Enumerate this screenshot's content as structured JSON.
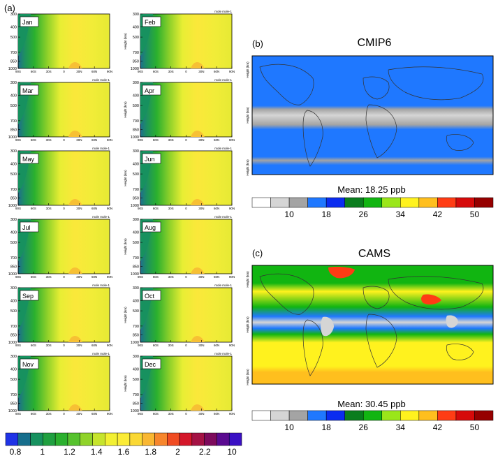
{
  "panel_labels": {
    "a": "(a)",
    "b": "(b)",
    "c": "(c)"
  },
  "monthly_panels": {
    "months": [
      "Jan",
      "Feb",
      "Mar",
      "Apr",
      "May",
      "Jun",
      "Jul",
      "Aug",
      "Sep",
      "Oct",
      "Nov",
      "Dec"
    ],
    "ytick_labels": [
      "300",
      "400",
      "500",
      "700",
      "850",
      "1000"
    ],
    "xtick_labels": [
      "90S",
      "60S",
      "30S",
      "0",
      "30N",
      "60N",
      "90N"
    ],
    "ylabel": "Height (km)",
    "units": "mole mole-1"
  },
  "map_panels": [
    {
      "title": "CMIP6",
      "mean_text": "Mean: 18.25 ppb"
    },
    {
      "title": "CAMS",
      "mean_text": "Mean: 30.45 ppb"
    }
  ],
  "ppb_colorbar": {
    "tick_labels": [
      "10",
      "18",
      "26",
      "34",
      "42",
      "50"
    ],
    "colors": [
      "#ffffff",
      "#d5d5d5",
      "#a4a4a4",
      "#1f78ff",
      "#0a2cf0",
      "#0a7d1e",
      "#11b511",
      "#9ae61a",
      "#fff21e",
      "#ffbf1e",
      "#ff3c14",
      "#d60a0a",
      "#960000"
    ]
  },
  "ratio_colorbar": {
    "tick_labels": [
      "0.8",
      "1",
      "1.2",
      "1.4",
      "1.6",
      "1.8",
      "2",
      "2.2",
      "10"
    ],
    "colors": [
      "#1f33e6",
      "#166e8c",
      "#17915f",
      "#20a040",
      "#2bb02e",
      "#56c22e",
      "#90d32a",
      "#c6e42c",
      "#f2f032",
      "#fbec36",
      "#fad834",
      "#f9b732",
      "#f7862c",
      "#f04c22",
      "#d4172a",
      "#a41244",
      "#7d0a5c",
      "#5a0a90",
      "#3a10c4"
    ]
  },
  "chart_data": [
    {
      "type": "heatmap",
      "panel": "(a)",
      "facets": [
        "Jan",
        "Feb",
        "Mar",
        "Apr",
        "May",
        "Jun",
        "Jul",
        "Aug",
        "Sep",
        "Oct",
        "Nov",
        "Dec"
      ],
      "xlabel": "",
      "ylabel": "Height (km)",
      "x": [
        "90S",
        "60S",
        "30S",
        "0",
        "30N",
        "60N",
        "90N"
      ],
      "y": [
        300,
        400,
        500,
        700,
        850,
        1000
      ],
      "colorbar_ticks": [
        0.8,
        1,
        1.2,
        1.4,
        1.6,
        1.8,
        2,
        2.2,
        10
      ],
      "units": "mole mole-1",
      "grid": false
    },
    {
      "type": "heatmap",
      "panel": "(b)",
      "title": "CMIP6",
      "annotation": "Mean: 18.25 ppb",
      "colorbar_ticks": [
        10,
        18,
        26,
        34,
        42,
        50
      ],
      "grid": false
    },
    {
      "type": "heatmap",
      "panel": "(c)",
      "title": "CAMS",
      "annotation": "Mean: 30.45 ppb",
      "colorbar_ticks": [
        10,
        18,
        26,
        34,
        42,
        50
      ],
      "grid": false
    }
  ]
}
